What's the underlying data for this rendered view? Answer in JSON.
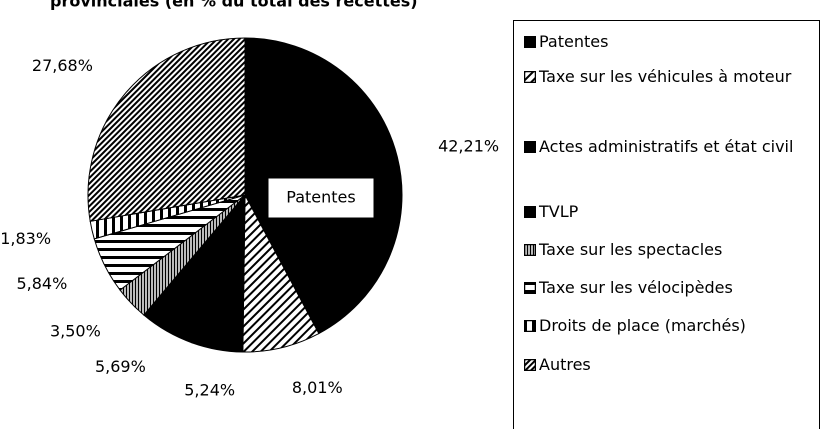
{
  "chart_data": {
    "type": "pie",
    "title": "provinciales (en % du total des recettes)",
    "annotation": "Patentes",
    "categories": [
      "Patentes",
      "Taxe sur les véhicules à moteur",
      "Actes administratifs et état civil",
      "TVLP",
      "Taxe sur les spectacles",
      "Taxe sur les vélocipèdes",
      "Droits de place (marchés)",
      "Autres"
    ],
    "values": [
      42.21,
      8.01,
      5.24,
      5.69,
      3.5,
      5.84,
      1.83,
      27.68
    ],
    "value_labels": [
      "42,21%",
      "8,01%",
      "5,24%",
      "5,69%",
      "3,50%",
      "5,84%",
      "1,83%",
      "27,68%"
    ],
    "patterns": [
      "solid",
      "diagonal",
      "solid",
      "solid",
      "dots",
      "horizontal",
      "vertical",
      "dense-diagonal"
    ],
    "color": "#000000"
  }
}
